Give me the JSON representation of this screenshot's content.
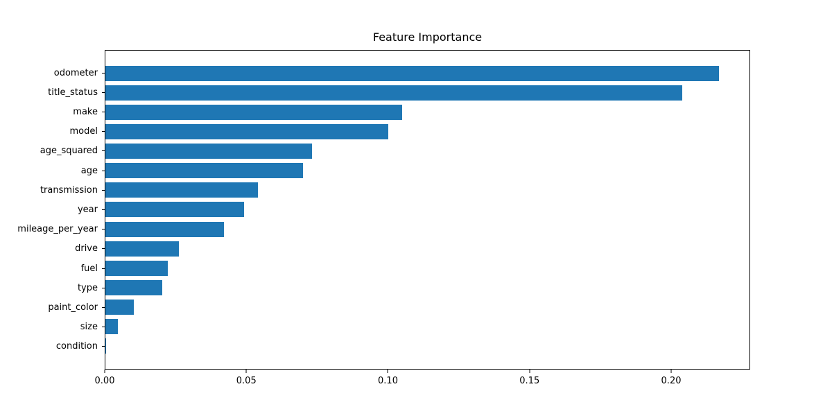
{
  "chart_data": {
    "type": "bar",
    "orientation": "horizontal",
    "title": "Feature Importance",
    "xlabel": "",
    "ylabel": "",
    "categories": [
      "odometer",
      "title_status",
      "make",
      "model",
      "age_squared",
      "age",
      "transmission",
      "year",
      "mileage_per_year",
      "drive",
      "fuel",
      "type",
      "paint_color",
      "size",
      "condition"
    ],
    "values": [
      0.217,
      0.204,
      0.105,
      0.1,
      0.073,
      0.07,
      0.054,
      0.049,
      0.042,
      0.026,
      0.022,
      0.02,
      0.01,
      0.0044,
      0.0003
    ],
    "xlim": [
      0,
      0.2279
    ],
    "x_ticks": [
      "0.00",
      "0.05",
      "0.10",
      "0.15",
      "0.20"
    ],
    "x_tick_values": [
      0.0,
      0.05,
      0.1,
      0.15,
      0.2
    ],
    "grid": false,
    "legend": null,
    "bar_color": "#1f77b4",
    "background_color": "#ffffff",
    "spine_color": "#000000"
  }
}
